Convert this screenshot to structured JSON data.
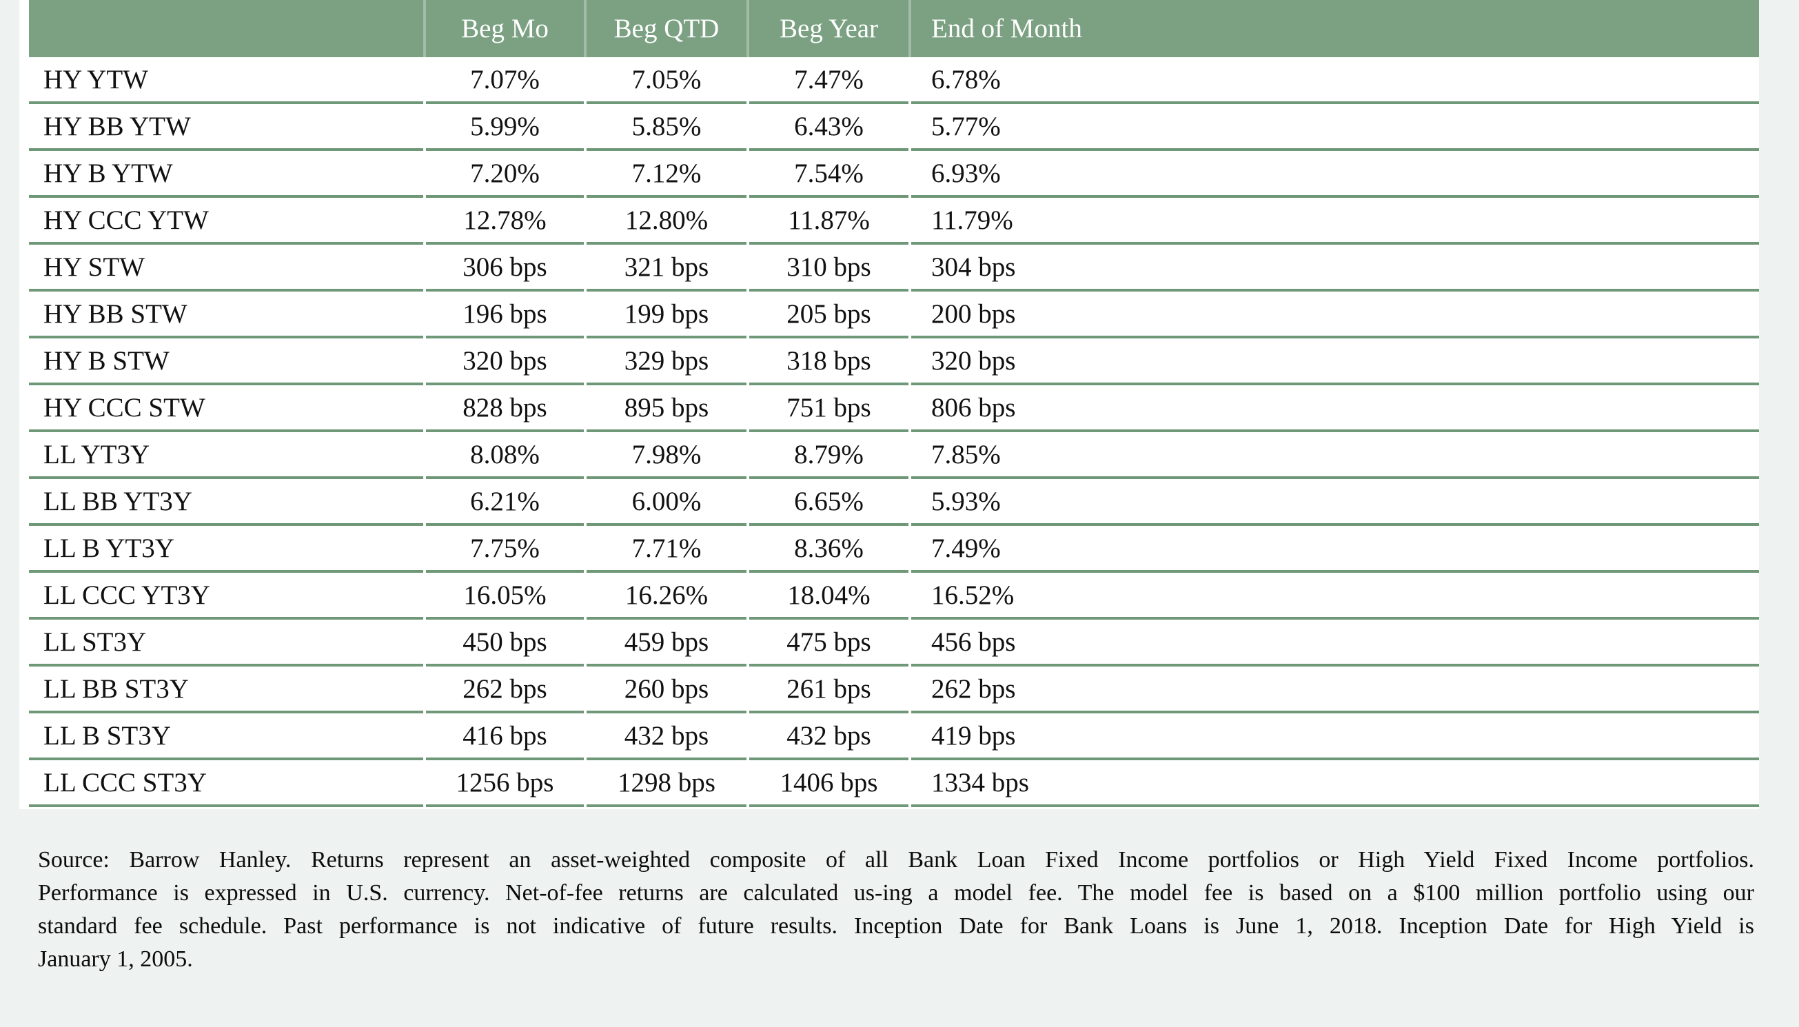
{
  "table": {
    "columns": [
      "",
      "Beg Mo",
      "Beg QTD",
      "Beg Year",
      "End of Month"
    ],
    "rows": [
      {
        "label": "HY YTW",
        "values": [
          "7.07%",
          "7.05%",
          "7.47%",
          "6.78%"
        ]
      },
      {
        "label": "HY BB YTW",
        "values": [
          "5.99%",
          "5.85%",
          "6.43%",
          "5.77%"
        ]
      },
      {
        "label": "HY B YTW",
        "values": [
          "7.20%",
          "7.12%",
          "7.54%",
          "6.93%"
        ]
      },
      {
        "label": "HY CCC YTW",
        "values": [
          "12.78%",
          "12.80%",
          "11.87%",
          "11.79%"
        ]
      },
      {
        "label": "HY STW",
        "values": [
          "306 bps",
          "321 bps",
          "310 bps",
          "304 bps"
        ]
      },
      {
        "label": "HY BB STW",
        "values": [
          "196 bps",
          "199 bps",
          "205 bps",
          "200 bps"
        ]
      },
      {
        "label": "HY B STW",
        "values": [
          "320 bps",
          "329 bps",
          "318 bps",
          "320 bps"
        ]
      },
      {
        "label": "HY CCC STW",
        "values": [
          "828 bps",
          "895 bps",
          "751 bps",
          "806 bps"
        ]
      },
      {
        "label": "LL YT3Y",
        "values": [
          "8.08%",
          "7.98%",
          "8.79%",
          "7.85%"
        ]
      },
      {
        "label": "LL BB YT3Y",
        "values": [
          "6.21%",
          "6.00%",
          "6.65%",
          "5.93%"
        ]
      },
      {
        "label": "LL B YT3Y",
        "values": [
          "7.75%",
          "7.71%",
          "8.36%",
          "7.49%"
        ]
      },
      {
        "label": "LL CCC YT3Y",
        "values": [
          "16.05%",
          "16.26%",
          "18.04%",
          "16.52%"
        ]
      },
      {
        "label": "LL ST3Y",
        "values": [
          "450 bps",
          "459 bps",
          "475 bps",
          "456 bps"
        ]
      },
      {
        "label": "LL BB ST3Y",
        "values": [
          "262 bps",
          "260 bps",
          "261 bps",
          "262 bps"
        ]
      },
      {
        "label": "LL B ST3Y",
        "values": [
          "416 bps",
          "432 bps",
          "432 bps",
          "419 bps"
        ]
      },
      {
        "label": "LL CCC ST3Y",
        "values": [
          "1256 bps",
          "1298 bps",
          "1406 bps",
          "1334 bps"
        ]
      }
    ]
  },
  "footnote": {
    "lines": [
      "Source: Barrow Hanley. Returns represent an asset-weighted composite of all Bank Loan Fixed Income portfolios or High Yield Fixed Income portfolios.",
      "Performance is expressed in U.S. currency. Net-of-fee returns are calculated us-ing a model fee. The model fee is based on a $100 million portfolio using our",
      "standard fee schedule. Past performance is not indicative of future results. Inception Date for Bank Loans is June 1, 2018. Inception Date for High Yield is",
      "January 1, 2005."
    ]
  },
  "colors": {
    "header_green": "#7ba182",
    "separator_green": "#6e9877",
    "page_background": "#eef2f1",
    "row_background": "#ffffff",
    "header_text": "#ffffff",
    "body_text": "#111111"
  }
}
